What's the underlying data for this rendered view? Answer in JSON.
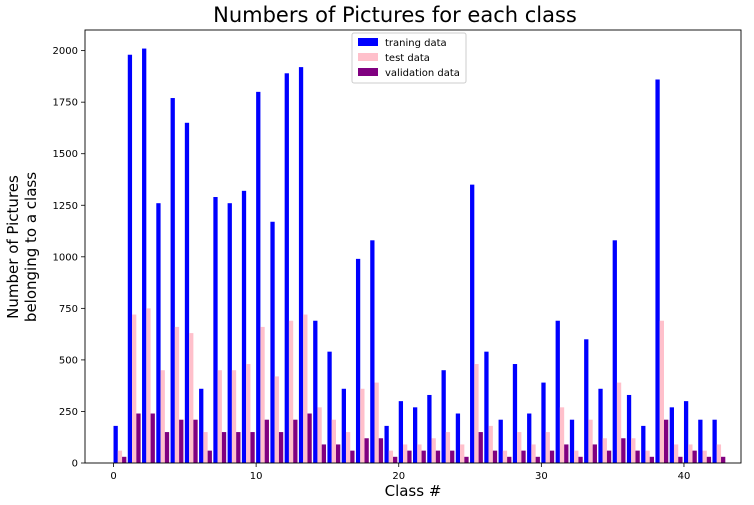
{
  "chart_data": {
    "type": "bar",
    "title": "Numbers of Pictures for each class",
    "xlabel": "Class #",
    "ylabel_lines": [
      "Number of Pictures",
      "belonging to a class"
    ],
    "xlim": [
      -2,
      44
    ],
    "ylim": [
      0,
      2100
    ],
    "xticks": [
      0,
      10,
      20,
      30,
      40
    ],
    "yticks": [
      0,
      250,
      500,
      750,
      1000,
      1250,
      1500,
      1750,
      2000
    ],
    "legend_position": "top-center",
    "classes": [
      0,
      1,
      2,
      3,
      4,
      5,
      6,
      7,
      8,
      9,
      10,
      11,
      12,
      13,
      14,
      15,
      16,
      17,
      18,
      19,
      20,
      21,
      22,
      23,
      24,
      25,
      26,
      27,
      28,
      29,
      30,
      31,
      32,
      33,
      34,
      35,
      36,
      37,
      38,
      39,
      40,
      41,
      42
    ],
    "series": [
      {
        "name": "traning data",
        "color": "#0000ff",
        "values": [
          180,
          1980,
          2010,
          1260,
          1770,
          1650,
          360,
          1290,
          1260,
          1320,
          1800,
          1170,
          1890,
          1920,
          690,
          540,
          360,
          990,
          1080,
          180,
          300,
          270,
          330,
          450,
          240,
          1350,
          540,
          210,
          480,
          240,
          390,
          690,
          210,
          600,
          360,
          1080,
          330,
          180,
          1860,
          270,
          300,
          210,
          210
        ]
      },
      {
        "name": "test data",
        "color": "#ffc0cb",
        "values": [
          60,
          720,
          750,
          450,
          660,
          630,
          150,
          450,
          450,
          480,
          660,
          420,
          690,
          720,
          270,
          210,
          150,
          360,
          390,
          60,
          90,
          90,
          120,
          150,
          90,
          480,
          180,
          60,
          150,
          90,
          150,
          270,
          60,
          210,
          120,
          390,
          120,
          60,
          690,
          90,
          90,
          60,
          90
        ]
      },
      {
        "name": "validation data",
        "color": "#800080",
        "values": [
          30,
          240,
          240,
          150,
          210,
          210,
          60,
          150,
          150,
          150,
          210,
          150,
          210,
          240,
          90,
          90,
          60,
          120,
          120,
          30,
          60,
          60,
          60,
          60,
          30,
          150,
          60,
          30,
          60,
          30,
          60,
          90,
          30,
          90,
          60,
          120,
          60,
          30,
          210,
          30,
          60,
          30,
          30
        ]
      }
    ]
  }
}
